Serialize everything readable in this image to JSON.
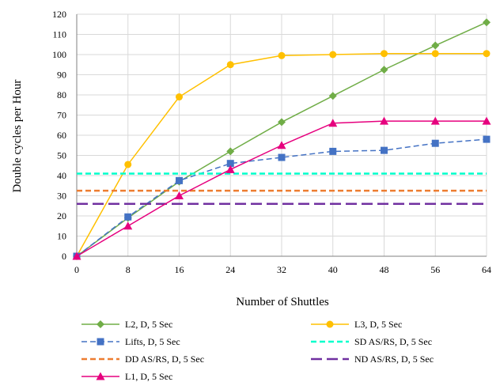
{
  "chart_data": {
    "type": "line",
    "xlabel": "Number of Shuttles",
    "ylabel": "Double cycles per Hour",
    "xticks": [
      0,
      8,
      16,
      24,
      32,
      40,
      48,
      56,
      64
    ],
    "yticks": [
      0,
      10,
      20,
      30,
      40,
      50,
      60,
      70,
      80,
      90,
      100,
      110,
      120
    ],
    "xlim": [
      0,
      64
    ],
    "ylim": [
      0,
      120
    ],
    "grid": true,
    "legend_position": "bottom",
    "series": [
      {
        "name": "L2, D, 5 Sec",
        "color": "#70AD47",
        "dash": "solid",
        "marker": "diamond",
        "x": [
          0,
          8,
          16,
          24,
          32,
          40,
          48,
          56,
          64
        ],
        "y": [
          0,
          19,
          37,
          52,
          66.5,
          79.5,
          92.5,
          104.5,
          116
        ]
      },
      {
        "name": "L3, D, 5 Sec",
        "color": "#FFC000",
        "dash": "solid",
        "marker": "circle",
        "x": [
          0,
          8,
          16,
          24,
          32,
          40,
          48,
          56,
          64
        ],
        "y": [
          0,
          45.5,
          79,
          95,
          99.5,
          100,
          100.5,
          100.5,
          100.5
        ]
      },
      {
        "name": "Lifts, D, 5 Sec",
        "color": "#4472C4",
        "dash": "dash",
        "marker": "square",
        "x": [
          0,
          8,
          16,
          24,
          32,
          40,
          48,
          56,
          64
        ],
        "y": [
          0,
          19.5,
          37.5,
          46,
          49,
          52,
          52.5,
          56,
          58
        ]
      },
      {
        "name": "SD AS/RS, D, 5 Sec",
        "color": "#00FFCC",
        "dash": "dash",
        "marker": "none",
        "x": [
          0,
          64
        ],
        "y": [
          41,
          41
        ]
      },
      {
        "name": "DD AS/RS, D, 5 Sec",
        "color": "#ED7D31",
        "dash": "dash",
        "marker": "none",
        "x": [
          0,
          64
        ],
        "y": [
          32.5,
          32.5
        ]
      },
      {
        "name": "ND AS/RS, D, 5 Sec",
        "color": "#7030A0",
        "dash": "longdash",
        "marker": "none",
        "x": [
          0,
          64
        ],
        "y": [
          26,
          26
        ]
      },
      {
        "name": "L1, D, 5 Sec",
        "color": "#E6007E",
        "dash": "solid",
        "marker": "triangle",
        "x": [
          0,
          8,
          16,
          24,
          32,
          40,
          48,
          56,
          64
        ],
        "y": [
          0,
          15,
          30,
          43,
          55,
          66,
          67,
          67,
          67
        ]
      }
    ]
  }
}
